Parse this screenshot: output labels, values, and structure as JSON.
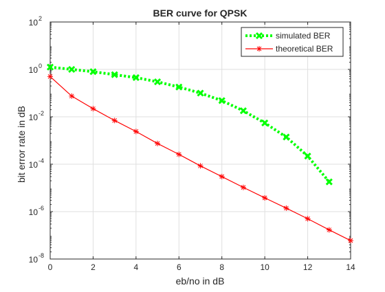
{
  "chart_data": {
    "type": "line",
    "title": "BER curve for QPSK",
    "xlabel": "eb/no in dB",
    "ylabel": "bit error rate in dB",
    "xlim": [
      0,
      14
    ],
    "ylim": [
      1e-08,
      100
    ],
    "yscale": "log",
    "grid": true,
    "legend_location": "top-right",
    "x_ticks": [
      0,
      2,
      4,
      6,
      8,
      10,
      12,
      14
    ],
    "y_tick_exponents": [
      -8,
      -6,
      -4,
      -2,
      0,
      2
    ],
    "y_tick_base": "10",
    "series": [
      {
        "name": "simulated BER",
        "color": "#00ff00",
        "line_style": "dotted",
        "marker": "x",
        "x": [
          0,
          1,
          2,
          3,
          4,
          5,
          6,
          7,
          8,
          9,
          10,
          11,
          12,
          13
        ],
        "y": [
          1.25,
          1.0,
          0.8,
          0.6,
          0.45,
          0.3,
          0.18,
          0.1,
          0.048,
          0.018,
          0.0055,
          0.0014,
          0.00022,
          1.8e-05
        ]
      },
      {
        "name": "theoretical BER",
        "color": "#ff0000",
        "line_style": "solid",
        "marker": "asterisk",
        "x": [
          0,
          1,
          2,
          3,
          4,
          5,
          6,
          7,
          8,
          9,
          10,
          11,
          12,
          13,
          14
        ],
        "y": [
          0.5,
          0.075,
          0.022,
          0.007,
          0.0024,
          0.00075,
          0.00026,
          8.5e-05,
          3e-05,
          1.05e-05,
          3.8e-06,
          1.4e-06,
          5e-07,
          1.7e-07,
          6e-08
        ]
      }
    ]
  }
}
